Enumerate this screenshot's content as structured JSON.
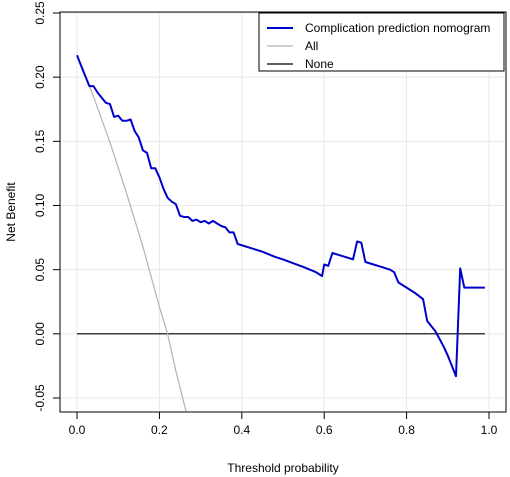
{
  "chart_data": {
    "type": "line",
    "xlabel": "Threshold probability",
    "ylabel": "Net Benefit",
    "xlim": [
      0.0,
      1.0
    ],
    "ylim": [
      -0.05,
      0.25
    ],
    "x_ticks": [
      "0.0",
      "0.2",
      "0.4",
      "0.6",
      "0.8",
      "1.0"
    ],
    "y_ticks": [
      "-0.05",
      "0.00",
      "0.05",
      "0.10",
      "0.15",
      "0.20",
      "0.25"
    ],
    "grid": true,
    "legend_position": "top-right",
    "series": [
      {
        "name": "Complication prediction nomogram",
        "color": "#0000CD",
        "points": [
          [
            0.0,
            0.217
          ],
          [
            0.01,
            0.209
          ],
          [
            0.02,
            0.201
          ],
          [
            0.03,
            0.193
          ],
          [
            0.04,
            0.193
          ],
          [
            0.05,
            0.188
          ],
          [
            0.06,
            0.184
          ],
          [
            0.07,
            0.18
          ],
          [
            0.08,
            0.179
          ],
          [
            0.09,
            0.169
          ],
          [
            0.1,
            0.17
          ],
          [
            0.11,
            0.166
          ],
          [
            0.12,
            0.166
          ],
          [
            0.13,
            0.167
          ],
          [
            0.14,
            0.158
          ],
          [
            0.15,
            0.153
          ],
          [
            0.16,
            0.143
          ],
          [
            0.17,
            0.141
          ],
          [
            0.18,
            0.129
          ],
          [
            0.19,
            0.129
          ],
          [
            0.2,
            0.122
          ],
          [
            0.21,
            0.113
          ],
          [
            0.22,
            0.106
          ],
          [
            0.23,
            0.103
          ],
          [
            0.24,
            0.101
          ],
          [
            0.25,
            0.092
          ],
          [
            0.26,
            0.091
          ],
          [
            0.27,
            0.091
          ],
          [
            0.28,
            0.088
          ],
          [
            0.29,
            0.089
          ],
          [
            0.3,
            0.087
          ],
          [
            0.31,
            0.088
          ],
          [
            0.32,
            0.086
          ],
          [
            0.33,
            0.088
          ],
          [
            0.34,
            0.086
          ],
          [
            0.35,
            0.084
          ],
          [
            0.36,
            0.083
          ],
          [
            0.37,
            0.079
          ],
          [
            0.38,
            0.079
          ],
          [
            0.39,
            0.07
          ],
          [
            0.42,
            0.067
          ],
          [
            0.45,
            0.064
          ],
          [
            0.48,
            0.06
          ],
          [
            0.5,
            0.058
          ],
          [
            0.55,
            0.052
          ],
          [
            0.58,
            0.048
          ],
          [
            0.595,
            0.045
          ],
          [
            0.6,
            0.054
          ],
          [
            0.61,
            0.053
          ],
          [
            0.62,
            0.063
          ],
          [
            0.64,
            0.061
          ],
          [
            0.66,
            0.059
          ],
          [
            0.67,
            0.058
          ],
          [
            0.68,
            0.072
          ],
          [
            0.69,
            0.071
          ],
          [
            0.7,
            0.056
          ],
          [
            0.72,
            0.054
          ],
          [
            0.74,
            0.052
          ],
          [
            0.76,
            0.05
          ],
          [
            0.77,
            0.048
          ],
          [
            0.78,
            0.04
          ],
          [
            0.8,
            0.036
          ],
          [
            0.82,
            0.032
          ],
          [
            0.84,
            0.027
          ],
          [
            0.85,
            0.01
          ],
          [
            0.86,
            0.006
          ],
          [
            0.87,
            0.002
          ],
          [
            0.88,
            -0.004
          ],
          [
            0.89,
            -0.01
          ],
          [
            0.9,
            -0.017
          ],
          [
            0.91,
            -0.025
          ],
          [
            0.92,
            -0.033
          ],
          [
            0.93,
            0.051
          ],
          [
            0.94,
            0.036
          ],
          [
            0.95,
            0.036
          ],
          [
            0.99,
            0.036
          ]
        ]
      },
      {
        "name": "All",
        "color": "#B3B3B3",
        "points": [
          [
            0.0,
            0.217
          ],
          [
            0.04,
            0.185
          ],
          [
            0.08,
            0.149
          ],
          [
            0.12,
            0.11
          ],
          [
            0.16,
            0.068
          ],
          [
            0.2,
            0.021
          ],
          [
            0.22,
            0.0
          ],
          [
            0.24,
            -0.029
          ],
          [
            0.265,
            -0.061
          ]
        ]
      },
      {
        "name": "None",
        "color": "#000000",
        "points": [
          [
            0.0,
            0.0
          ],
          [
            0.99,
            0.0
          ]
        ]
      }
    ]
  }
}
